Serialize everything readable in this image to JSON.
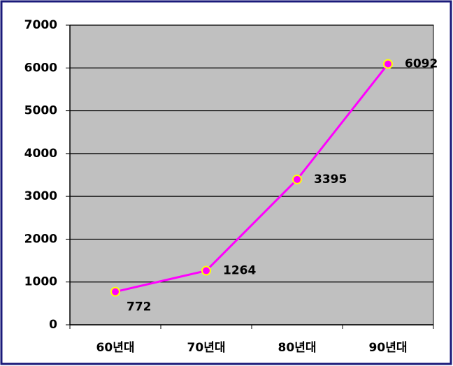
{
  "chart_data": {
    "type": "line",
    "categories": [
      "60년대",
      "70년대",
      "80년대",
      "90년대"
    ],
    "series": [
      {
        "color": "#ff00ff",
        "values": [
          772,
          1264,
          3395,
          6092
        ]
      }
    ],
    "marker_edge_color": "#ffff00",
    "plot_background": "#c0c0c0",
    "ylim": [
      0,
      7000
    ],
    "yticks": [
      0,
      1000,
      2000,
      3000,
      4000,
      5000,
      6000,
      7000
    ],
    "grid": true
  }
}
